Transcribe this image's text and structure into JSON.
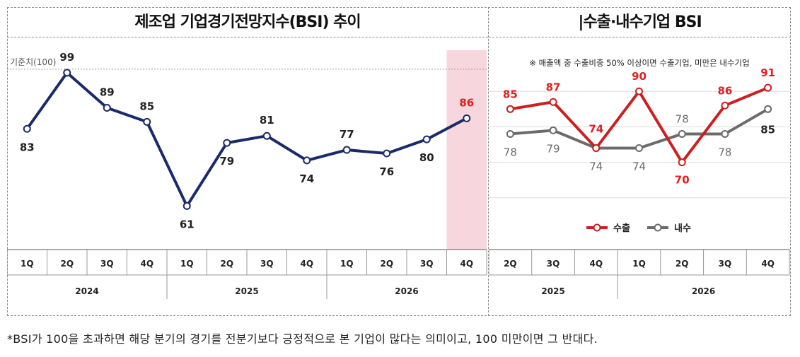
{
  "left_panel": {
    "title": "제조업 기업경기전망지수(BSI) 추이",
    "reference_label": "기준치(100)"
  },
  "right_panel": {
    "title": "|수출·내수기업 BSI",
    "note": "※ 매출액 중 수출비중 50% 이상이면 수출기업, 미만은 내수기업"
  },
  "footnote": "*BSI가 100을 초과하면 해당 분기의 경기를 전분기보다 긍정적으로 본 기업이 많다는 의미이고, 100 미만이면 그 반대다.",
  "colors": {
    "navy": "#1b2a6b",
    "export_red": "#cc1f1f",
    "domestic_gray": "#6b6b6b",
    "highlight_pink": "#f7d7dd",
    "red_label": "#e02020"
  },
  "chart_data": [
    {
      "type": "line",
      "title": "제조업 기업경기전망지수(BSI) 추이",
      "categories": [
        "1Q",
        "2Q",
        "3Q",
        "4Q",
        "1Q",
        "2Q",
        "3Q",
        "4Q",
        "1Q",
        "2Q",
        "3Q",
        "4Q"
      ],
      "groups": [
        {
          "label": "2024",
          "count": 4
        },
        {
          "label": "2025",
          "count": 4
        },
        {
          "label": "2026",
          "count": 4
        }
      ],
      "series": [
        {
          "values": [
            83,
            99,
            89,
            85,
            61,
            79,
            81,
            74,
            77,
            76,
            80,
            86
          ]
        }
      ],
      "highlight_index": 11,
      "reference_line": 100,
      "ylim": [
        50,
        102
      ]
    },
    {
      "type": "line",
      "title": "|수출·내수기업 BSI",
      "categories": [
        "2Q",
        "3Q",
        "4Q",
        "1Q",
        "2Q",
        "3Q",
        "4Q"
      ],
      "groups": [
        {
          "label": "2025",
          "count": 3
        },
        {
          "label": "2026",
          "count": 4
        }
      ],
      "series": [
        {
          "name": "수출",
          "values": [
            85,
            87,
            74,
            90,
            70,
            86,
            91
          ]
        },
        {
          "name": "내수",
          "values": [
            78,
            79,
            74,
            74,
            78,
            78,
            85
          ]
        }
      ],
      "legend_position": "bottom",
      "ylim": [
        50,
        100
      ]
    }
  ]
}
